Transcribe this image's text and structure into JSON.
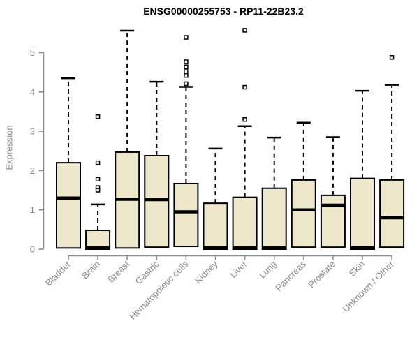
{
  "chart_data": {
    "type": "boxplot",
    "title": "ENSG00000255753 - RP11-22B23.2",
    "ylabel": "Expression",
    "xlabel": "",
    "ylim": [
      0,
      5.6
    ],
    "yticks": [
      0,
      1,
      2,
      3,
      4,
      5
    ],
    "grid": false,
    "legend": "none",
    "box_fill": "#eee7cc",
    "box_border": "#000000",
    "axis_color": "#8a8a8a",
    "categories": [
      "Bladder",
      "Brain",
      "Breast",
      "Gastric",
      "Hematopoietic cells",
      "Kidney",
      "Liver",
      "Lung",
      "Pancreas",
      "Prostate",
      "Skin",
      "Unknown / Other"
    ],
    "boxes": [
      {
        "category": "Bladder",
        "whisker_hi": 4.35,
        "q3": 2.2,
        "median": 1.3,
        "q1": 0.03,
        "whisker_lo": 0.03,
        "outliers": []
      },
      {
        "category": "Brain",
        "whisker_hi": 1.14,
        "q3": 0.48,
        "median": 0.03,
        "q1": 0.0,
        "whisker_lo": 0.0,
        "outliers": [
          3.37,
          2.2,
          1.78,
          1.57,
          1.5
        ]
      },
      {
        "category": "Breast",
        "whisker_hi": 5.56,
        "q3": 2.47,
        "median": 1.27,
        "q1": 0.03,
        "whisker_lo": 0.03,
        "outliers": []
      },
      {
        "category": "Gastric",
        "whisker_hi": 4.26,
        "q3": 2.38,
        "median": 1.26,
        "q1": 0.05,
        "whisker_lo": 0.05,
        "outliers": []
      },
      {
        "category": "Hematopoietic cells",
        "whisker_hi": 4.13,
        "q3": 1.67,
        "median": 0.95,
        "q1": 0.07,
        "whisker_lo": 0.07,
        "outliers": [
          5.39,
          4.77,
          4.64,
          4.52,
          4.42,
          4.21
        ]
      },
      {
        "category": "Kidney",
        "whisker_hi": 2.56,
        "q3": 1.17,
        "median": 0.03,
        "q1": 0.0,
        "whisker_lo": 0.0,
        "outliers": []
      },
      {
        "category": "Liver",
        "whisker_hi": 3.13,
        "q3": 1.32,
        "median": 0.03,
        "q1": 0.0,
        "whisker_lo": 0.0,
        "outliers": [
          5.57,
          4.12,
          3.3
        ]
      },
      {
        "category": "Lung",
        "whisker_hi": 2.84,
        "q3": 1.55,
        "median": 0.03,
        "q1": 0.0,
        "whisker_lo": 0.0,
        "outliers": []
      },
      {
        "category": "Pancreas",
        "whisker_hi": 3.22,
        "q3": 1.76,
        "median": 1.0,
        "q1": 0.05,
        "whisker_lo": 0.05,
        "outliers": []
      },
      {
        "category": "Prostate",
        "whisker_hi": 2.85,
        "q3": 1.37,
        "median": 1.12,
        "q1": 0.05,
        "whisker_lo": 0.05,
        "outliers": []
      },
      {
        "category": "Skin",
        "whisker_hi": 4.03,
        "q3": 1.8,
        "median": 0.04,
        "q1": 0.0,
        "whisker_lo": 0.0,
        "outliers": []
      },
      {
        "category": "Unknown / Other",
        "whisker_hi": 4.18,
        "q3": 1.76,
        "median": 0.8,
        "q1": 0.05,
        "whisker_lo": 0.05,
        "outliers": [
          4.88
        ]
      }
    ]
  }
}
